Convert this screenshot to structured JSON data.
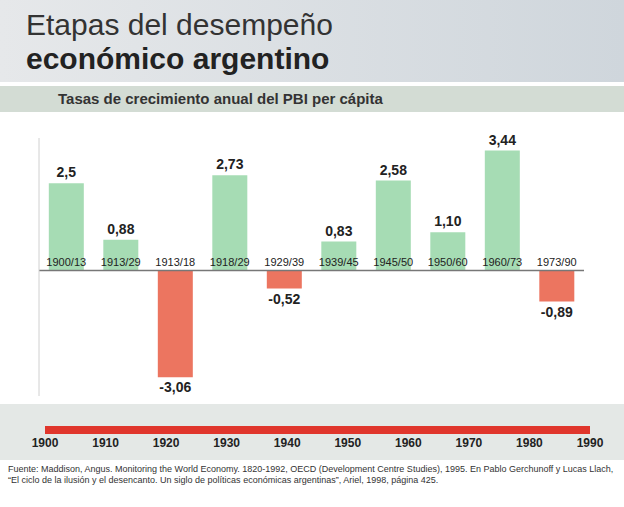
{
  "chart_data": [
    {
      "type": "bar",
      "title": "Etapas del desempeño económico argentino",
      "subtitle": "Tasas de crecimiento anual del PBI per cápita",
      "categories": [
        "1900/13",
        "1913/29",
        "1913/18",
        "1918/29",
        "1929/39",
        "1939/45",
        "1945/50",
        "1950/60",
        "1960/73",
        "1973/90"
      ],
      "values": [
        2.5,
        0.88,
        -3.06,
        2.73,
        -0.52,
        0.83,
        2.58,
        1.1,
        3.44,
        -0.89
      ],
      "value_labels": [
        "2,5",
        "0,88",
        "-3,06",
        "2,73",
        "-0,52",
        "0,83",
        "2,58",
        "1,10",
        "3,44",
        "-0,89"
      ],
      "colors": [
        "#a6dcb4",
        "#a6dcb4",
        "#ec7560",
        "#a6dcb4",
        "#ec7560",
        "#a6dcb4",
        "#a6dcb4",
        "#a6dcb4",
        "#a6dcb4",
        "#ec7560"
      ],
      "ylim": [
        -3.6,
        3.8
      ],
      "yticks": [
        0
      ],
      "data_labels": true,
      "tick_labels": "x",
      "grid": false,
      "annotations": [
        "Fuente: Maddison, Angus. Monitoring the World Economy. 1820-1992, OECD (Development Centre Studies), 1995. En Pablo Gerchunoff y Lucas Llach, “El ciclo de la ilusión y el desencanto. Un siglo de políticas económicas argentinas”, Ariel, 1998, página 425."
      ]
    },
    {
      "type": "timeline",
      "xlim": [
        1900,
        1990
      ],
      "xticks": [
        1900,
        1910,
        1920,
        1930,
        1940,
        1950,
        1960,
        1970,
        1980,
        1990
      ],
      "color": "#e0362c"
    }
  ]
}
